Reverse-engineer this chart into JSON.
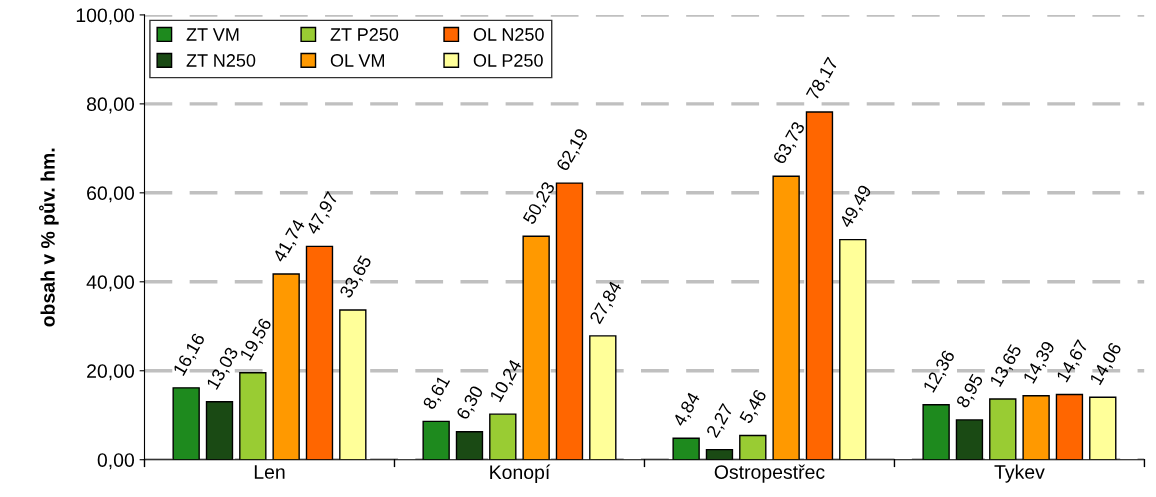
{
  "chart_data": {
    "type": "bar",
    "ylabel": "obsah v % pův. hm.",
    "categories": [
      "Len",
      "Konopí",
      "Ostropestřec",
      "Tykev"
    ],
    "series": [
      {
        "name": "ZT VM",
        "color": "#1e8a1e",
        "values": [
          16.16,
          8.61,
          4.84,
          12.36
        ],
        "value_labels": [
          "16,16",
          "8,61",
          "4,84",
          "12,36"
        ]
      },
      {
        "name": "ZT N250",
        "color": "#1a4a14",
        "values": [
          13.03,
          6.3,
          2.27,
          8.95
        ],
        "value_labels": [
          "13,03",
          "6,30",
          "2,27",
          "8,95"
        ]
      },
      {
        "name": "ZT P250",
        "color": "#99cc33",
        "values": [
          19.56,
          10.24,
          5.46,
          13.65
        ],
        "value_labels": [
          "19,56",
          "10,24",
          "5,46",
          "13,65"
        ]
      },
      {
        "name": "OL VM",
        "color": "#ff9900",
        "values": [
          41.74,
          50.23,
          63.73,
          14.39
        ],
        "value_labels": [
          "41,74",
          "50,23",
          "63,73",
          "14,39"
        ]
      },
      {
        "name": "OL N250",
        "color": "#ff6600",
        "values": [
          47.97,
          62.19,
          78.17,
          14.67
        ],
        "value_labels": [
          "47,97",
          "62,19",
          "78,17",
          "14,67"
        ]
      },
      {
        "name": "OL P250",
        "color": "#ffff99",
        "values": [
          33.65,
          27.84,
          49.49,
          14.06
        ],
        "value_labels": [
          "33,65",
          "27,84",
          "49,49",
          "14,06"
        ]
      }
    ],
    "ylim": [
      0,
      100
    ],
    "yticks": [
      {
        "value": 0,
        "label": "0,00"
      },
      {
        "value": 20,
        "label": "20,00"
      },
      {
        "value": 40,
        "label": "40,00"
      },
      {
        "value": 60,
        "label": "60,00"
      },
      {
        "value": 80,
        "label": "80,00"
      },
      {
        "value": 100,
        "label": "100,00"
      }
    ],
    "grid": "y",
    "legend": "top left"
  }
}
